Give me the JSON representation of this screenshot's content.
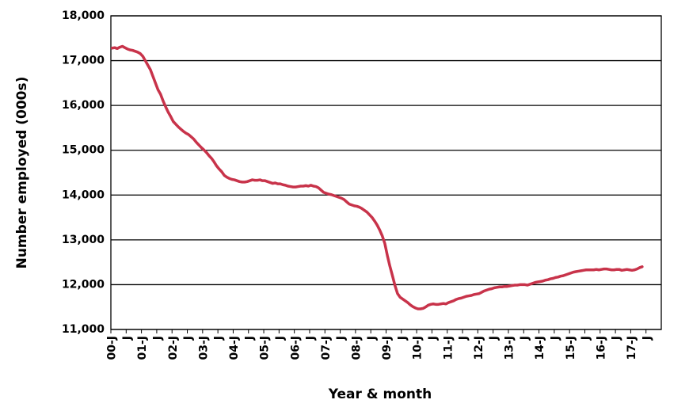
{
  "chart_data": {
    "type": "line",
    "x_label": "Year & month",
    "y_label": "Number employed (000s)",
    "color": "#c8334a",
    "grid": true,
    "ylim": [
      11000,
      18000
    ],
    "yticks": [
      {
        "value": 11000,
        "label": "11,000"
      },
      {
        "value": 12000,
        "label": "12,000"
      },
      {
        "value": 13000,
        "label": "13,000"
      },
      {
        "value": 14000,
        "label": "14,000"
      },
      {
        "value": 15000,
        "label": "15,000"
      },
      {
        "value": 16000,
        "label": "16,000"
      },
      {
        "value": 17000,
        "label": "17,000"
      },
      {
        "value": 18000,
        "label": "18,000"
      }
    ],
    "categories": [
      "00-J",
      null,
      null,
      null,
      null,
      null,
      "J",
      null,
      null,
      null,
      null,
      null,
      "01-J",
      null,
      null,
      null,
      null,
      null,
      "J",
      null,
      null,
      null,
      null,
      null,
      "02-J",
      null,
      null,
      null,
      null,
      null,
      "J",
      null,
      null,
      null,
      null,
      null,
      "03-J",
      null,
      null,
      null,
      null,
      null,
      "J",
      null,
      null,
      null,
      null,
      null,
      "04-J",
      null,
      null,
      null,
      null,
      null,
      "J",
      null,
      null,
      null,
      null,
      null,
      "05-J",
      null,
      null,
      null,
      null,
      null,
      "J",
      null,
      null,
      null,
      null,
      null,
      "06-J",
      null,
      null,
      null,
      null,
      null,
      "J",
      null,
      null,
      null,
      null,
      null,
      "07-J",
      null,
      null,
      null,
      null,
      null,
      "J",
      null,
      null,
      null,
      null,
      null,
      "08-J",
      null,
      null,
      null,
      null,
      null,
      "J",
      null,
      null,
      null,
      null,
      null,
      "09-J",
      null,
      null,
      null,
      null,
      null,
      "J",
      null,
      null,
      null,
      null,
      null,
      "10-J",
      null,
      null,
      null,
      null,
      null,
      "J",
      null,
      null,
      null,
      null,
      null,
      "11-J",
      null,
      null,
      null,
      null,
      null,
      "J",
      null,
      null,
      null,
      null,
      null,
      "12-J",
      null,
      null,
      null,
      null,
      null,
      "J",
      null,
      null,
      null,
      null,
      null,
      "13-J",
      null,
      null,
      null,
      null,
      null,
      "J",
      null,
      null,
      null,
      null,
      null,
      "14-J",
      null,
      null,
      null,
      null,
      null,
      "J",
      null,
      null,
      null,
      null,
      null,
      "15-J",
      null,
      null,
      null,
      null,
      null,
      "J",
      null,
      null,
      null,
      null,
      null,
      "16-J",
      null,
      null,
      null,
      null,
      null,
      "J",
      null,
      null,
      null,
      null,
      null,
      "17-J",
      null,
      null,
      null,
      null,
      null,
      "J",
      null,
      null,
      null,
      null,
      null
    ],
    "values": [
      17280,
      17290,
      17270,
      17300,
      17320,
      17290,
      17260,
      17240,
      17230,
      17210,
      17190,
      17160,
      17100,
      17000,
      16900,
      16800,
      16650,
      16500,
      16350,
      16250,
      16100,
      15970,
      15850,
      15750,
      15640,
      15580,
      15520,
      15470,
      15420,
      15380,
      15350,
      15300,
      15250,
      15180,
      15120,
      15060,
      15010,
      14950,
      14880,
      14820,
      14740,
      14650,
      14580,
      14520,
      14440,
      14400,
      14370,
      14350,
      14340,
      14320,
      14300,
      14290,
      14290,
      14300,
      14320,
      14340,
      14330,
      14330,
      14340,
      14320,
      14320,
      14300,
      14280,
      14260,
      14270,
      14250,
      14250,
      14230,
      14220,
      14200,
      14190,
      14180,
      14180,
      14190,
      14200,
      14200,
      14210,
      14200,
      14220,
      14200,
      14190,
      14160,
      14110,
      14060,
      14040,
      14020,
      14010,
      13990,
      13970,
      13950,
      13930,
      13900,
      13850,
      13800,
      13780,
      13760,
      13750,
      13730,
      13700,
      13660,
      13620,
      13560,
      13500,
      13420,
      13330,
      13220,
      13090,
      12920,
      12650,
      12410,
      12200,
      11980,
      11800,
      11720,
      11680,
      11640,
      11600,
      11550,
      11510,
      11480,
      11460,
      11460,
      11470,
      11500,
      11540,
      11560,
      11570,
      11560,
      11560,
      11570,
      11580,
      11570,
      11600,
      11620,
      11640,
      11670,
      11690,
      11700,
      11720,
      11740,
      11750,
      11760,
      11780,
      11790,
      11800,
      11830,
      11860,
      11880,
      11900,
      11910,
      11930,
      11940,
      11950,
      11950,
      11960,
      11960,
      11970,
      11980,
      11990,
      11990,
      12000,
      12000,
      12000,
      11990,
      12010,
      12030,
      12050,
      12060,
      12070,
      12080,
      12100,
      12110,
      12130,
      12140,
      12160,
      12170,
      12190,
      12200,
      12220,
      12240,
      12260,
      12280,
      12290,
      12300,
      12310,
      12320,
      12330,
      12330,
      12330,
      12330,
      12340,
      12330,
      12340,
      12350,
      12350,
      12340,
      12330,
      12330,
      12340,
      12340,
      12320,
      12330,
      12340,
      12330,
      12320,
      12330,
      12350,
      12380,
      12400,
      null,
      null,
      null,
      null,
      null,
      null,
      null
    ]
  }
}
